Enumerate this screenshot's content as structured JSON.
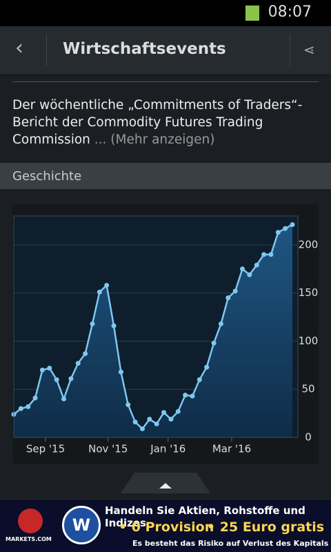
{
  "status": {
    "time": "08:07"
  },
  "header": {
    "title": "Wirtschaftsevents"
  },
  "description": {
    "text": "Der wöchentliche „Commitments of Traders“-Bericht der Commodity Futures Trading Commission",
    "more": "... (Mehr anzeigen)"
  },
  "section": {
    "title": "Geschichte"
  },
  "chart_data": {
    "type": "area",
    "values": [
      24,
      30,
      32,
      41,
      70,
      72,
      60,
      40,
      61,
      77,
      87,
      118,
      151,
      158,
      116,
      68,
      34,
      16,
      9,
      19,
      14,
      26,
      19,
      27,
      44,
      43,
      60,
      73,
      98,
      118,
      145,
      152,
      175,
      169,
      179,
      190,
      190,
      213,
      217,
      221
    ],
    "color": "#7ec8f0",
    "xticks": [
      {
        "value": 4.44,
        "label": "Sep '15"
      },
      {
        "value": 13.2,
        "label": "Nov '15"
      },
      {
        "value": 21.6,
        "label": "Jan '16"
      },
      {
        "value": 30.5,
        "label": "Mar '16"
      }
    ],
    "ylim": [
      0,
      230
    ],
    "yticks": [
      0,
      50,
      100,
      150,
      200
    ],
    "grid": true
  },
  "ad": {
    "brand": "MARKETS.COM",
    "headline": "Handeln Sie Aktien, Rohstoffe und Indizes",
    "offer1": "• 0 Provision",
    "offer2": "• 25 Euro gratis",
    "risk": "Es besteht das Risiko auf Verlust des Kapitals"
  }
}
